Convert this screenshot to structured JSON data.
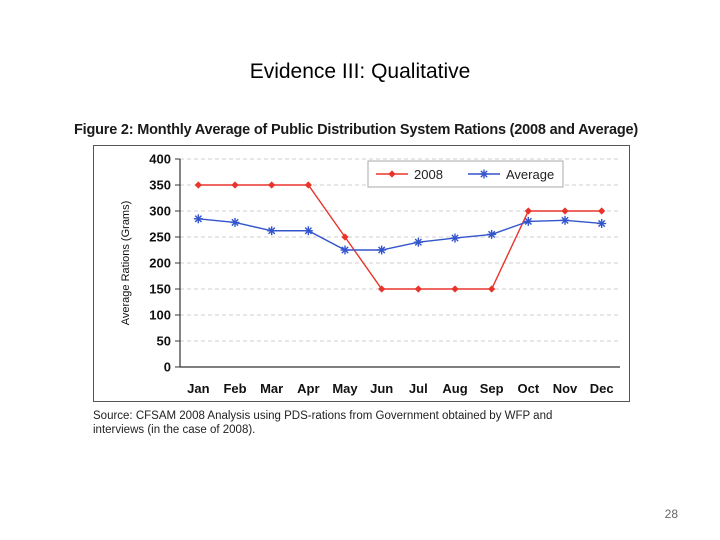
{
  "slide": {
    "title": "Evidence III: Qualitative",
    "page_number": "28"
  },
  "figure": {
    "caption": "Figure 2: Monthly Average of Public Distribution System Rations (2008 and Average)",
    "source": "Source: CFSAM 2008 Analysis using PDS-rations from Government obtained by WFP and interviews (in the case of 2008)."
  },
  "chart_data": {
    "type": "line",
    "title": "Monthly Average of Public Distribution System Rations (2008 and Average)",
    "xlabel": "",
    "ylabel": "Average Rations (Grams)",
    "categories": [
      "Jan",
      "Feb",
      "Mar",
      "Apr",
      "May",
      "Jun",
      "Jul",
      "Aug",
      "Sep",
      "Oct",
      "Nov",
      "Dec"
    ],
    "ylim": [
      0,
      400
    ],
    "yticks": [
      0,
      50,
      100,
      150,
      200,
      250,
      300,
      350,
      400
    ],
    "grid": true,
    "legend_position": "top-right",
    "series": [
      {
        "name": "2008",
        "color": "#e8352b",
        "marker": "diamond",
        "values": [
          350,
          350,
          350,
          350,
          250,
          150,
          150,
          150,
          150,
          300,
          300,
          300
        ]
      },
      {
        "name": "Average",
        "color": "#3355cc",
        "marker": "asterisk",
        "values": [
          285,
          278,
          262,
          262,
          225,
          225,
          240,
          248,
          255,
          280,
          282,
          276
        ]
      }
    ]
  }
}
